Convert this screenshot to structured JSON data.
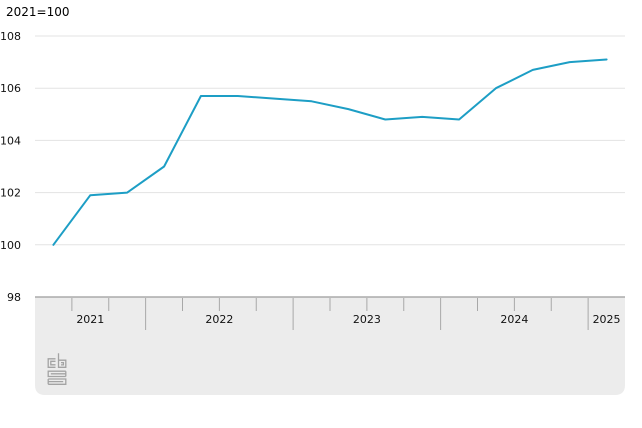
{
  "title": "2021=100",
  "chart_data": {
    "type": "line",
    "title": "2021=100",
    "x": [
      "2021 Q2",
      "2021 Q3",
      "2021 Q4",
      "2022 Q1",
      "2022 Q2",
      "2022 Q3",
      "2022 Q4",
      "2023 Q1",
      "2023 Q2",
      "2023 Q3",
      "2023 Q4",
      "2024 Q1",
      "2024 Q2",
      "2024 Q3",
      "2024 Q4",
      "2025 Q1"
    ],
    "values": [
      100.0,
      101.9,
      102.0,
      103.0,
      105.7,
      105.7,
      105.6,
      105.5,
      105.2,
      104.8,
      104.9,
      104.8,
      106.0,
      106.7,
      107.0,
      107.1
    ],
    "years": [
      {
        "label": "2021",
        "quarters": 3
      },
      {
        "label": "2022",
        "quarters": 4
      },
      {
        "label": "2023",
        "quarters": 4
      },
      {
        "label": "2024",
        "quarters": 4
      },
      {
        "label": "2025",
        "quarters": 1
      }
    ],
    "yticks": [
      98,
      100,
      102,
      104,
      106,
      108
    ],
    "ylim": [
      98,
      108
    ],
    "grid": true,
    "legend": "none",
    "line_color": "#1d9ec5",
    "panel_color": "#ececec",
    "gridline_color": "#e3e3e3",
    "axis_line_color": "#9b9b9b",
    "tick_color": "#a8a8a8",
    "label_color": "#111111"
  },
  "footer": {
    "logo": "cbs-logo"
  }
}
